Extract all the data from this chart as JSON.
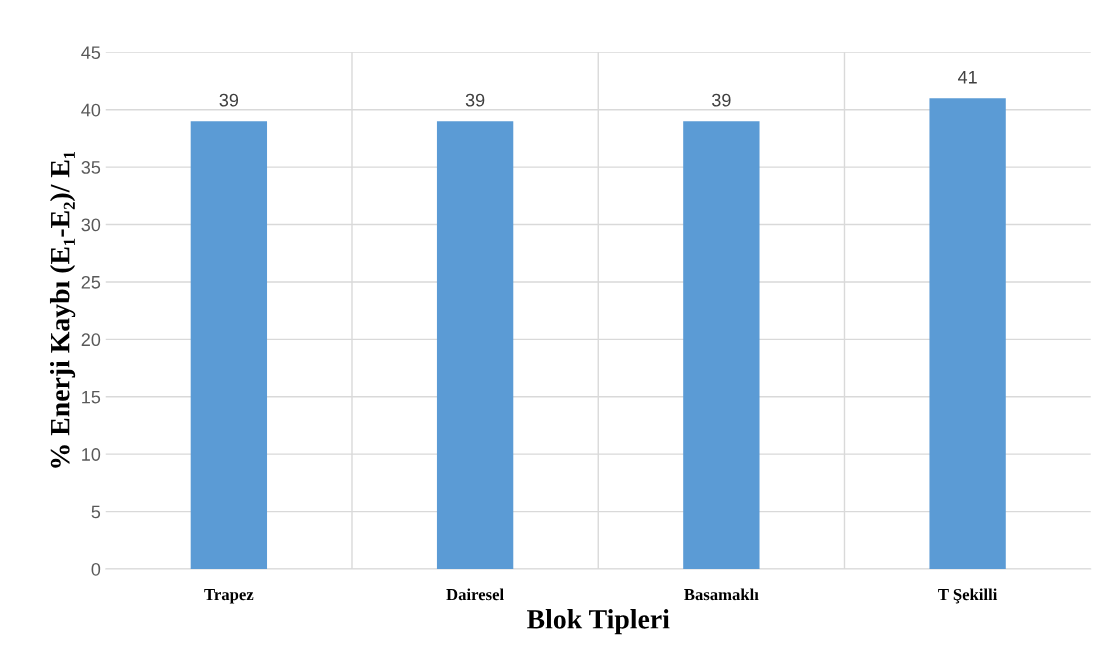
{
  "chart_data": {
    "type": "bar",
    "xlabel": "Blok Tipleri",
    "ylabel": "% Enerji Kaybı (E₁-E₂)/ E₁",
    "categories": [
      "Trapez",
      "Dairesel",
      "Basamaklı",
      "T Şekilli"
    ],
    "values": [
      39,
      39,
      39,
      41
    ],
    "color": "#5b9bd5",
    "ylim": [
      0,
      45
    ],
    "yticks": [
      0,
      5,
      10,
      15,
      20,
      25,
      30,
      35,
      40,
      45
    ],
    "grid": true,
    "data_labels": true
  }
}
